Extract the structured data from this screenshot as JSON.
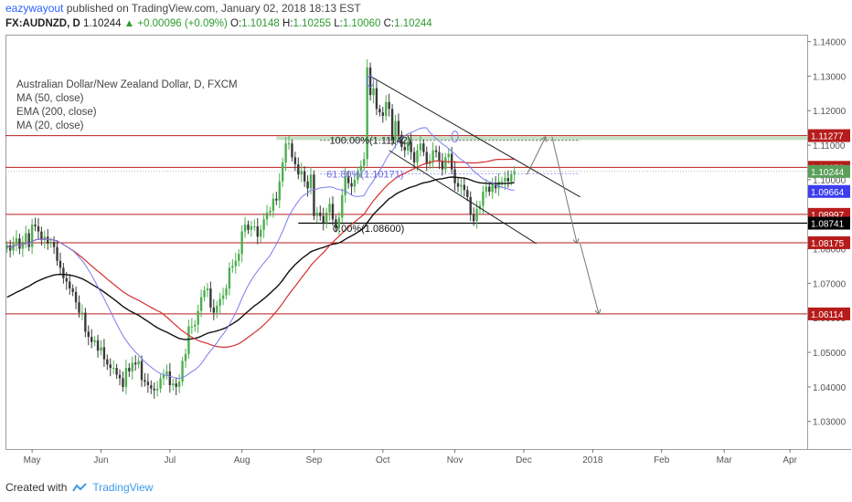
{
  "header": {
    "author": "eazywayout",
    "published": "published on TradingView.com, January 02, 2018 18:13 EST"
  },
  "ohlc": {
    "symbol": "FX:AUDNZD, D",
    "last": "1.10244",
    "change": "+0.00096 (+0.09%)",
    "o_label": "O:",
    "o": "1.10148",
    "h_label": "H:",
    "h": "1.10255",
    "l_label": "L:",
    "l": "1.10060",
    "c_label": "C:",
    "c": "1.10244"
  },
  "legend": {
    "title": "Australian Dollar/New Zealand Dollar, D, FXCM",
    "ma50": "MA (50, close)",
    "ema200": "EMA (200, close)",
    "ma20": "MA (20, close)"
  },
  "footer": {
    "created": "Created with",
    "brand": "TradingView"
  },
  "colors": {
    "up": "#4caf50",
    "down": "#3a3a3a",
    "ma50": "#d32f2f",
    "ema200": "#111111",
    "ma20": "#7b7bef",
    "level": "#b71c1c",
    "zone": "#a5d6a7",
    "ret": "#222222"
  },
  "chart_data": {
    "type": "candlestick",
    "y_range": [
      1.022,
      1.142
    ],
    "y_ticks": [
      "1.14000",
      "1.13000",
      "1.12000",
      "1.11000",
      "1.10000",
      "1.09000",
      "1.08000",
      "1.07000",
      "1.06000",
      "1.05000",
      "1.04000",
      "1.03000"
    ],
    "y_tick_values": [
      1.14,
      1.13,
      1.12,
      1.11,
      1.1,
      1.09,
      1.08,
      1.07,
      1.06,
      1.05,
      1.04,
      1.03
    ],
    "x_labels": [
      {
        "label": "May",
        "index": 8
      },
      {
        "label": "Jun",
        "index": 30
      },
      {
        "label": "Jul",
        "index": 52
      },
      {
        "label": "Aug",
        "index": 75
      },
      {
        "label": "Sep",
        "index": 98
      },
      {
        "label": "Oct",
        "index": 120
      },
      {
        "label": "Nov",
        "index": 143
      },
      {
        "label": "Dec",
        "index": 165
      },
      {
        "label": "2018",
        "index": 187
      },
      {
        "label": "Feb",
        "index": 209
      },
      {
        "label": "Mar",
        "index": 229
      },
      {
        "label": "Apr",
        "index": 250
      }
    ],
    "n_slots": 256,
    "closes": [
      1.081,
      1.0795,
      1.0815,
      1.083,
      1.08,
      1.082,
      1.0845,
      1.0805,
      1.087,
      1.0865,
      1.085,
      1.0825,
      1.0835,
      1.0815,
      1.082,
      1.0805,
      1.0765,
      1.0745,
      1.0715,
      1.0705,
      1.0685,
      1.0675,
      1.0645,
      1.0615,
      1.0615,
      1.056,
      1.0545,
      1.053,
      1.0535,
      1.0505,
      1.0515,
      1.048,
      1.0465,
      1.0455,
      1.0455,
      1.0435,
      1.0425,
      1.04,
      1.0455,
      1.0445,
      1.047,
      1.0465,
      1.0475,
      1.042,
      1.0415,
      1.0405,
      1.0395,
      1.039,
      1.0395,
      1.0425,
      1.0435,
      1.0445,
      1.0405,
      1.041,
      1.04,
      1.0415,
      1.0475,
      1.0495,
      1.0575,
      1.0575,
      1.058,
      1.062,
      1.066,
      1.068,
      1.0685,
      1.063,
      1.0615,
      1.0635,
      1.0655,
      1.0665,
      1.0685,
      1.0745,
      1.075,
      1.0765,
      1.0785,
      1.085,
      1.087,
      1.0855,
      1.0865,
      1.0865,
      1.0835,
      1.0855,
      1.0885,
      1.0905,
      1.091,
      1.0945,
      1.094,
      1.0995,
      1.105,
      1.1105,
      1.1105,
      1.1065,
      1.1045,
      1.1015,
      1.1025,
      1.0995,
      1.0975,
      1.1015,
      1.0895,
      1.0905,
      1.0895,
      1.0875,
      1.0905,
      1.093,
      1.0885,
      1.086,
      1.089,
      1.0955,
      1.101,
      1.099,
      1.098,
      1.1,
      1.1025,
      1.104,
      1.106,
      1.1325,
      1.1245,
      1.1265,
      1.1205,
      1.1195,
      1.1185,
      1.1225,
      1.1205,
      1.1115,
      1.117,
      1.113,
      1.1095,
      1.1085,
      1.111,
      1.108,
      1.105,
      1.1085,
      1.1105,
      1.108,
      1.1045,
      1.1055,
      1.1085,
      1.108,
      1.1055,
      1.103,
      1.1065,
      1.1075,
      1.103,
      1.099,
      1.098,
      1.0985,
      1.097,
      1.095,
      1.09,
      1.088,
      1.0915,
      1.0925,
      1.0965,
      1.098,
      1.0965,
      1.099,
      1.0975,
      1.0995,
      1.0995,
      1.1005,
      1.0995,
      1.1015,
      1.1024
    ],
    "start_index": 0,
    "levels": [
      1.11277,
      1.10359,
      1.08997,
      1.08175,
      1.06114
    ],
    "level_labels": [
      "1.11277",
      "1.10359",
      "1.08997",
      "1.08175",
      "1.06114"
    ],
    "flat_line": 1.08741,
    "flat_label": "1.08741",
    "ma20_tag": "1.09664",
    "last_tag": "1.10244",
    "fib": [
      {
        "label": "100.00%(1.11142)",
        "value": 1.11142
      },
      {
        "label": "61.80%(1.10171)",
        "value": 1.10171
      },
      {
        "label": "0.00%(1.08600)",
        "value": 1.086
      }
    ],
    "zone": [
      1.1115,
      1.1125
    ]
  }
}
